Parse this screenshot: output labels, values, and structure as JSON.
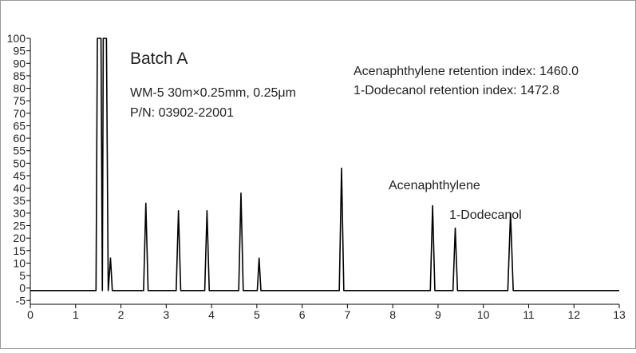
{
  "chart_data": {
    "type": "line",
    "annotations": [
      "Batch A",
      "WM-5 30m×0.25mm, 0.25μm",
      "P/N: 03902-22001",
      "Acenaphthylene retention index: 1460.0",
      "1-Dodecanol retention index: 1472.8",
      "Acenaphthylene",
      "1-Dodecanol"
    ],
    "series": [
      {
        "color": "#000000",
        "x": [
          0,
          1.45,
          1.48,
          1.56,
          1.59,
          1.61,
          1.68,
          1.72,
          1.77,
          1.81,
          2.5,
          2.55,
          2.6,
          3.22,
          3.27,
          3.32,
          3.85,
          3.9,
          3.95,
          4.6,
          4.65,
          4.7,
          5.01,
          5.05,
          5.09,
          6.82,
          6.87,
          6.92,
          8.83,
          8.88,
          8.93,
          9.33,
          9.38,
          9.43,
          10.54,
          10.6,
          10.66,
          13
        ],
        "values": [
          -1,
          -1,
          100,
          100,
          -1,
          100,
          100,
          -1,
          12,
          -1,
          -1,
          34,
          -1,
          -1,
          31,
          -1,
          -1,
          31,
          -1,
          -1,
          38,
          -1,
          -1,
          12,
          -1,
          -1,
          48,
          -1,
          -1,
          33,
          -1,
          -1,
          24,
          -1,
          -1,
          30,
          -1,
          -1
        ]
      }
    ],
    "xlim": [
      0,
      13
    ],
    "xticks": [
      0,
      1,
      2,
      3,
      4,
      5,
      6,
      7,
      8,
      9,
      10,
      11,
      12,
      13
    ],
    "ylim": [
      -6.5,
      100
    ],
    "yticks": [
      -5,
      0,
      5,
      10,
      15,
      20,
      25,
      30,
      35,
      40,
      45,
      50,
      55,
      60,
      65,
      70,
      75,
      80,
      85,
      90,
      95,
      100
    ]
  }
}
